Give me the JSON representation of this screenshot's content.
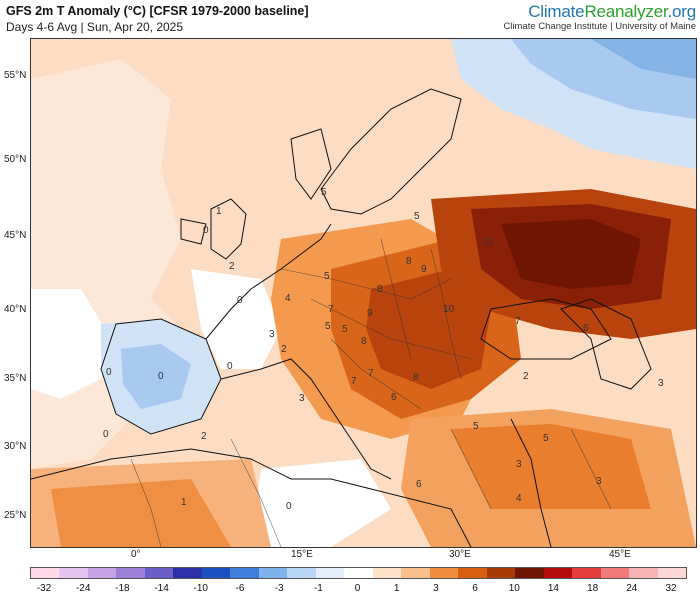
{
  "header": {
    "title": "GFS 2m T Anomaly (°C) [CFSR 1979-2000 baseline]",
    "subtitle": "Days 4-6 Avg | Sun, Apr 20, 2025"
  },
  "brand": {
    "name_part1": "Climate",
    "name_part2": "Reanalyzer",
    "name_part3": ".org",
    "subtitle": "Climate Change Institute | University of Maine"
  },
  "lat_labels": [
    "55°N",
    "50°N",
    "45°N",
    "40°N",
    "35°N",
    "30°N",
    "25°N"
  ],
  "lon_labels": [
    "0°",
    "15°E",
    "30°E",
    "45°E"
  ],
  "anomaly_labels": [
    "1",
    "0",
    "2",
    "0",
    "5",
    "5",
    "5",
    "8",
    "9",
    "11",
    "4",
    "5",
    "7",
    "8",
    "9",
    "10",
    "7",
    "6",
    "3",
    "2",
    "5",
    "8",
    "7",
    "7",
    "6",
    "8",
    "3",
    "0",
    "2",
    "3",
    "0",
    "0",
    "0",
    "5",
    "5",
    "3",
    "6",
    "4",
    "3",
    "1",
    "0",
    "2"
  ],
  "legend": {
    "values": [
      "-32",
      "-24",
      "-18",
      "-14",
      "-10",
      "-6",
      "-3",
      "-1",
      "0",
      "1",
      "3",
      "6",
      "10",
      "14",
      "18",
      "24",
      "32"
    ],
    "colors": [
      "#ffd9e8",
      "#e7c4ef",
      "#c7a3e6",
      "#9b7fd8",
      "#6a5fc6",
      "#2b2fa8",
      "#1c4fc2",
      "#3f7fdb",
      "#7fb1ec",
      "#b9d6f4",
      "#e4eefa",
      "#ffffff",
      "#fde2cc",
      "#f9bf8c",
      "#f08d3f",
      "#d85f10",
      "#a83a06",
      "#6e1504",
      "#b40c0c",
      "#e33d3d",
      "#f27a7a",
      "#f7b3b3",
      "#fbd7d7"
    ]
  }
}
